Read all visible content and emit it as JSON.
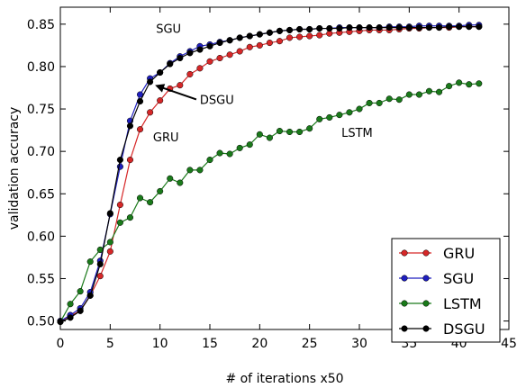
{
  "chart_data": {
    "type": "line",
    "xlabel": "# of iterations x50",
    "ylabel": "validation accuracy",
    "xlim": [
      0,
      45
    ],
    "ylim": [
      0.49,
      0.87
    ],
    "xticks": [
      0,
      5,
      10,
      15,
      20,
      25,
      30,
      35,
      40,
      45
    ],
    "yticks": [
      0.5,
      0.55,
      0.6,
      0.65,
      0.7,
      0.75,
      0.8,
      0.85
    ],
    "ytick_labels": [
      "0.50",
      "0.55",
      "0.60",
      "0.65",
      "0.70",
      "0.75",
      "0.80",
      "0.85"
    ],
    "grid": false,
    "legend_position": "bottom-right",
    "x": [
      0,
      1,
      2,
      3,
      4,
      5,
      6,
      7,
      8,
      9,
      10,
      11,
      12,
      13,
      14,
      15,
      16,
      17,
      18,
      19,
      20,
      21,
      22,
      23,
      24,
      25,
      26,
      27,
      28,
      29,
      30,
      31,
      32,
      33,
      34,
      35,
      36,
      37,
      38,
      39,
      40,
      41,
      42
    ],
    "series": [
      {
        "name": "GRU",
        "color": "#d62728",
        "values": [
          0.5,
          0.506,
          0.512,
          0.53,
          0.553,
          0.582,
          0.637,
          0.69,
          0.726,
          0.746,
          0.76,
          0.774,
          0.778,
          0.791,
          0.798,
          0.806,
          0.81,
          0.814,
          0.818,
          0.823,
          0.825,
          0.828,
          0.83,
          0.834,
          0.835,
          0.836,
          0.837,
          0.839,
          0.84,
          0.841,
          0.842,
          0.843,
          0.843,
          0.843,
          0.844,
          0.845,
          0.845,
          0.846,
          0.846,
          0.846,
          0.847,
          0.847,
          0.847
        ]
      },
      {
        "name": "SGU",
        "color": "#1f1fbf",
        "values": [
          0.5,
          0.507,
          0.515,
          0.534,
          0.571,
          0.626,
          0.682,
          0.736,
          0.767,
          0.786,
          0.793,
          0.804,
          0.812,
          0.818,
          0.824,
          0.826,
          0.829,
          0.831,
          0.834,
          0.836,
          0.838,
          0.84,
          0.842,
          0.843,
          0.844,
          0.844,
          0.845,
          0.845,
          0.846,
          0.846,
          0.846,
          0.846,
          0.846,
          0.847,
          0.847,
          0.847,
          0.848,
          0.848,
          0.848,
          0.848,
          0.848,
          0.849,
          0.849
        ]
      },
      {
        "name": "LSTM",
        "color": "#1a7a1a",
        "values": [
          0.499,
          0.52,
          0.535,
          0.57,
          0.584,
          0.593,
          0.616,
          0.622,
          0.645,
          0.64,
          0.653,
          0.668,
          0.663,
          0.678,
          0.678,
          0.69,
          0.698,
          0.697,
          0.704,
          0.708,
          0.72,
          0.716,
          0.724,
          0.723,
          0.723,
          0.727,
          0.738,
          0.74,
          0.743,
          0.746,
          0.75,
          0.757,
          0.757,
          0.762,
          0.761,
          0.767,
          0.767,
          0.771,
          0.77,
          0.777,
          0.781,
          0.779,
          0.78
        ]
      },
      {
        "name": "DSGU",
        "color": "#000000",
        "values": [
          0.499,
          0.504,
          0.512,
          0.53,
          0.567,
          0.627,
          0.69,
          0.73,
          0.759,
          0.782,
          0.793,
          0.803,
          0.81,
          0.816,
          0.82,
          0.824,
          0.828,
          0.831,
          0.834,
          0.836,
          0.838,
          0.84,
          0.842,
          0.843,
          0.844,
          0.844,
          0.845,
          0.845,
          0.845,
          0.846,
          0.846,
          0.846,
          0.846,
          0.846,
          0.846,
          0.846,
          0.846,
          0.846,
          0.846,
          0.847,
          0.847,
          0.847,
          0.847
        ]
      }
    ],
    "annotations": [
      {
        "text": "SGU",
        "x": 9.6,
        "y": 0.84
      },
      {
        "text": "DSGU",
        "x": 14,
        "y": 0.756,
        "arrow_to": [
          9.5,
          0.778
        ]
      },
      {
        "text": "GRU",
        "x": 9.3,
        "y": 0.712
      },
      {
        "text": "LSTM",
        "x": 28.2,
        "y": 0.717
      }
    ]
  }
}
